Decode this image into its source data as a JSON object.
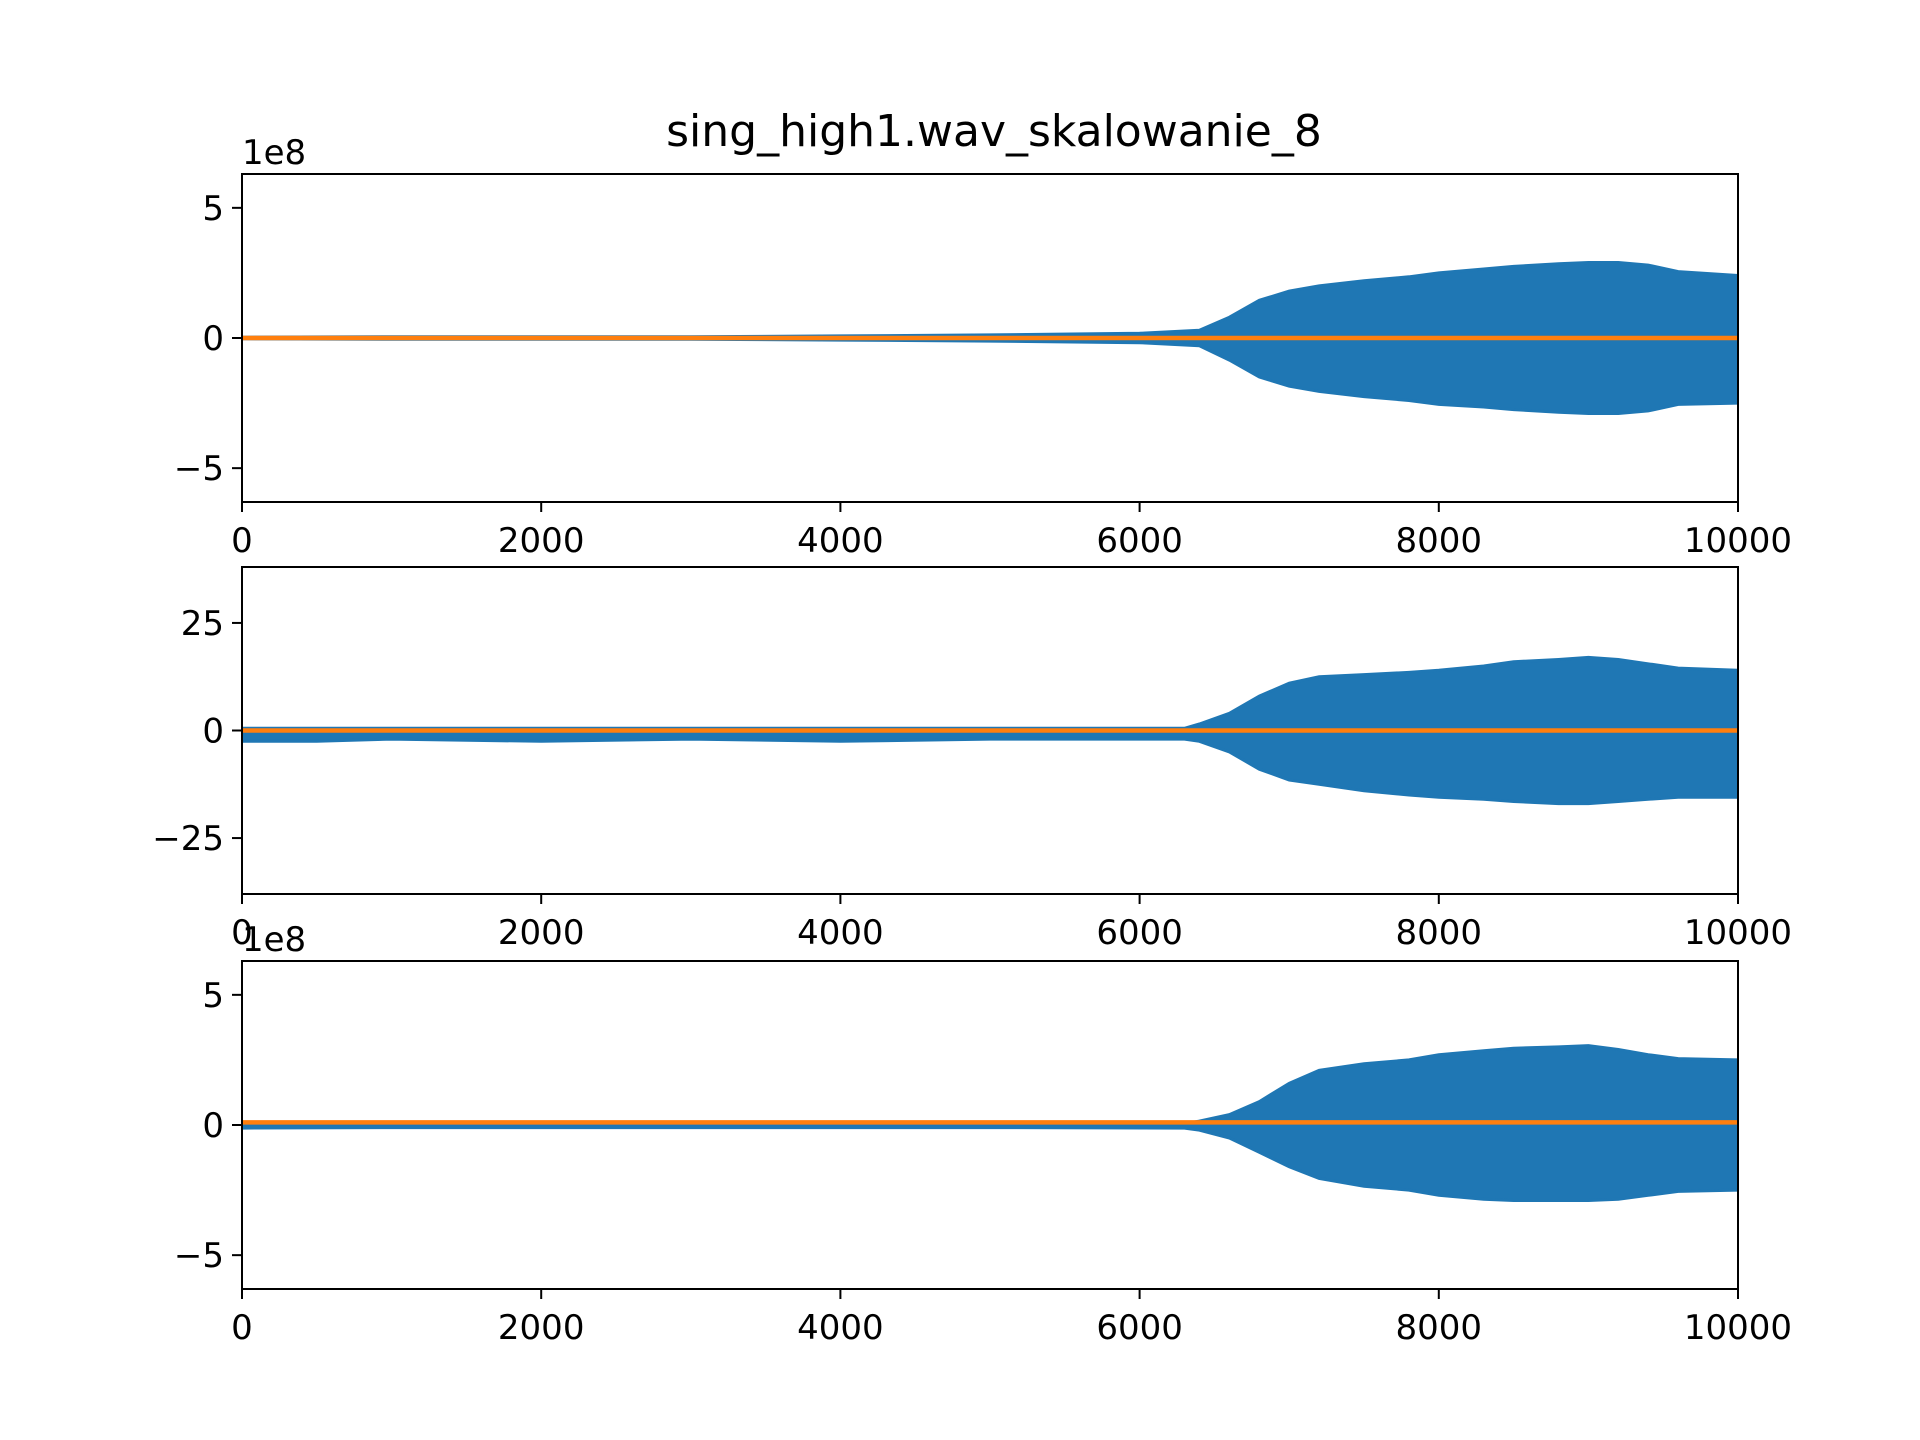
{
  "figure": {
    "title": "sing_high1.wav_skalowanie_8"
  },
  "chart_data": [
    {
      "type": "area",
      "title": "sing_high1.wav_skalowanie_8",
      "offset_label": "1e8",
      "xlim": [
        0,
        10000
      ],
      "ylim": [
        -6.3,
        6.3
      ],
      "xticks": [
        0,
        2000,
        4000,
        6000,
        8000,
        10000
      ],
      "xtick_labels": [
        "0",
        "2000",
        "4000",
        "6000",
        "8000",
        "10000"
      ],
      "yticks": [
        -5,
        0,
        5
      ],
      "ytick_labels": [
        "−5",
        "0",
        "5"
      ],
      "grid": false,
      "series": [
        {
          "color": "#1f77b4",
          "kind": "envelope",
          "x": [
            0,
            1000,
            2000,
            3000,
            4000,
            5000,
            6000,
            6400,
            6600,
            6800,
            7000,
            7200,
            7500,
            7800,
            8000,
            8300,
            8500,
            8800,
            9000,
            9200,
            9400,
            9600,
            10000
          ],
          "upper": [
            0.03,
            0.05,
            0.05,
            0.05,
            0.08,
            0.12,
            0.18,
            0.3,
            0.8,
            1.45,
            1.8,
            2.0,
            2.2,
            2.35,
            2.5,
            2.65,
            2.75,
            2.85,
            2.9,
            2.9,
            2.8,
            2.55,
            2.4
          ],
          "lower": [
            -0.03,
            -0.05,
            -0.05,
            -0.05,
            -0.08,
            -0.12,
            -0.18,
            -0.3,
            -0.85,
            -1.5,
            -1.85,
            -2.05,
            -2.25,
            -2.4,
            -2.55,
            -2.65,
            -2.75,
            -2.85,
            -2.9,
            -2.9,
            -2.8,
            -2.55,
            -2.5
          ]
        },
        {
          "color": "#ff7f0e",
          "kind": "line",
          "x": [
            0,
            10000
          ],
          "y": [
            0,
            0
          ]
        }
      ]
    },
    {
      "type": "area",
      "xlim": [
        0,
        10000
      ],
      "ylim": [
        -38,
        38
      ],
      "xticks": [
        0,
        2000,
        4000,
        6000,
        8000,
        10000
      ],
      "xtick_labels": [
        "0",
        "2000",
        "4000",
        "6000",
        "8000",
        "10000"
      ],
      "yticks": [
        -25,
        0,
        25
      ],
      "ytick_labels": [
        "−25",
        "0",
        "25"
      ],
      "grid": false,
      "series": [
        {
          "color": "#1f77b4",
          "kind": "envelope",
          "x": [
            0,
            500,
            1000,
            2000,
            3000,
            4000,
            5000,
            6300,
            6400,
            6600,
            6800,
            7000,
            7200,
            7500,
            7800,
            8000,
            8300,
            8500,
            8800,
            9000,
            9200,
            9400,
            9600,
            10000
          ],
          "upper": [
            0.5,
            0.5,
            0.5,
            0.5,
            0.5,
            0.5,
            0.5,
            0.5,
            1.5,
            4,
            8,
            11,
            12.5,
            13,
            13.5,
            14,
            15,
            16,
            16.5,
            17,
            16.5,
            15.5,
            14.5,
            14
          ],
          "lower": [
            -2.5,
            -2.5,
            -2,
            -2.5,
            -2,
            -2.5,
            -2,
            -2,
            -2.5,
            -5,
            -9,
            -11.5,
            -12.5,
            -14,
            -15,
            -15.5,
            -16,
            -16.5,
            -17,
            -17,
            -16.5,
            -16,
            -15.5,
            -15.5
          ]
        },
        {
          "color": "#ff7f0e",
          "kind": "line",
          "x": [
            0,
            10000
          ],
          "y": [
            0,
            0
          ]
        }
      ]
    },
    {
      "type": "area",
      "offset_label": "1e8",
      "xlim": [
        0,
        10000
      ],
      "ylim": [
        -6.3,
        6.3
      ],
      "xticks": [
        0,
        2000,
        4000,
        6000,
        8000,
        10000
      ],
      "xtick_labels": [
        "0",
        "2000",
        "4000",
        "6000",
        "8000",
        "10000"
      ],
      "yticks": [
        -5,
        0,
        5
      ],
      "ytick_labels": [
        "−5",
        "0",
        "5"
      ],
      "grid": false,
      "series": [
        {
          "color": "#1f77b4",
          "kind": "envelope",
          "x": [
            0,
            1000,
            2000,
            3000,
            4000,
            5000,
            6300,
            6400,
            6600,
            6800,
            7000,
            7200,
            7500,
            7800,
            8000,
            8300,
            8500,
            8800,
            9000,
            9200,
            9400,
            9600,
            10000
          ],
          "upper": [
            0.05,
            0.05,
            0.05,
            0.05,
            0.05,
            0.05,
            0.05,
            0.15,
            0.4,
            0.9,
            1.6,
            2.1,
            2.35,
            2.5,
            2.7,
            2.85,
            2.95,
            3.0,
            3.05,
            2.9,
            2.7,
            2.55,
            2.5
          ],
          "lower": [
            -0.12,
            -0.1,
            -0.1,
            -0.1,
            -0.1,
            -0.1,
            -0.12,
            -0.2,
            -0.5,
            -1.05,
            -1.6,
            -2.05,
            -2.35,
            -2.5,
            -2.7,
            -2.85,
            -2.9,
            -2.9,
            -2.9,
            -2.85,
            -2.7,
            -2.55,
            -2.5
          ]
        },
        {
          "color": "#ff7f0e",
          "kind": "line",
          "x": [
            0,
            10000
          ],
          "y": [
            0.1,
            0.1
          ]
        }
      ]
    }
  ]
}
